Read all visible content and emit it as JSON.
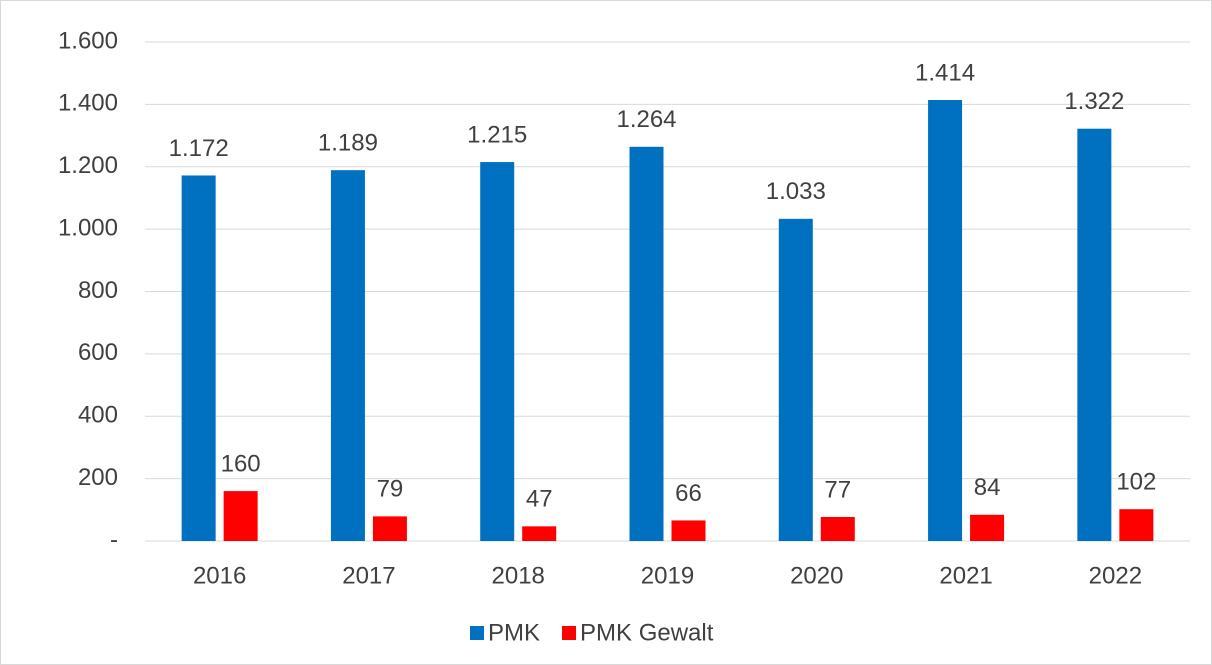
{
  "chart_data": {
    "type": "bar",
    "categories": [
      "2016",
      "2017",
      "2018",
      "2019",
      "2020",
      "2021",
      "2022"
    ],
    "series": [
      {
        "name": "PMK",
        "color": "#0070c0",
        "values": [
          1172,
          1189,
          1215,
          1264,
          1033,
          1414,
          1322
        ],
        "value_labels": [
          "1.172",
          "1.189",
          "1.215",
          "1.264",
          "1.033",
          "1.414",
          "1.322"
        ]
      },
      {
        "name": "PMK Gewalt",
        "color": "#ff0000",
        "values": [
          160,
          79,
          47,
          66,
          77,
          84,
          102
        ]
      }
    ],
    "ylim": [
      0,
      1600
    ],
    "yticks": [
      {
        "value": 0,
        "label": "-"
      },
      200,
      400,
      600,
      800,
      {
        "value": 1000,
        "label": "1.000"
      },
      {
        "value": 1200,
        "label": "1.200"
      },
      {
        "value": 1400,
        "label": "1.400"
      },
      {
        "value": 1600,
        "label": "1.600"
      }
    ],
    "grid": true,
    "legend": "bottom"
  }
}
